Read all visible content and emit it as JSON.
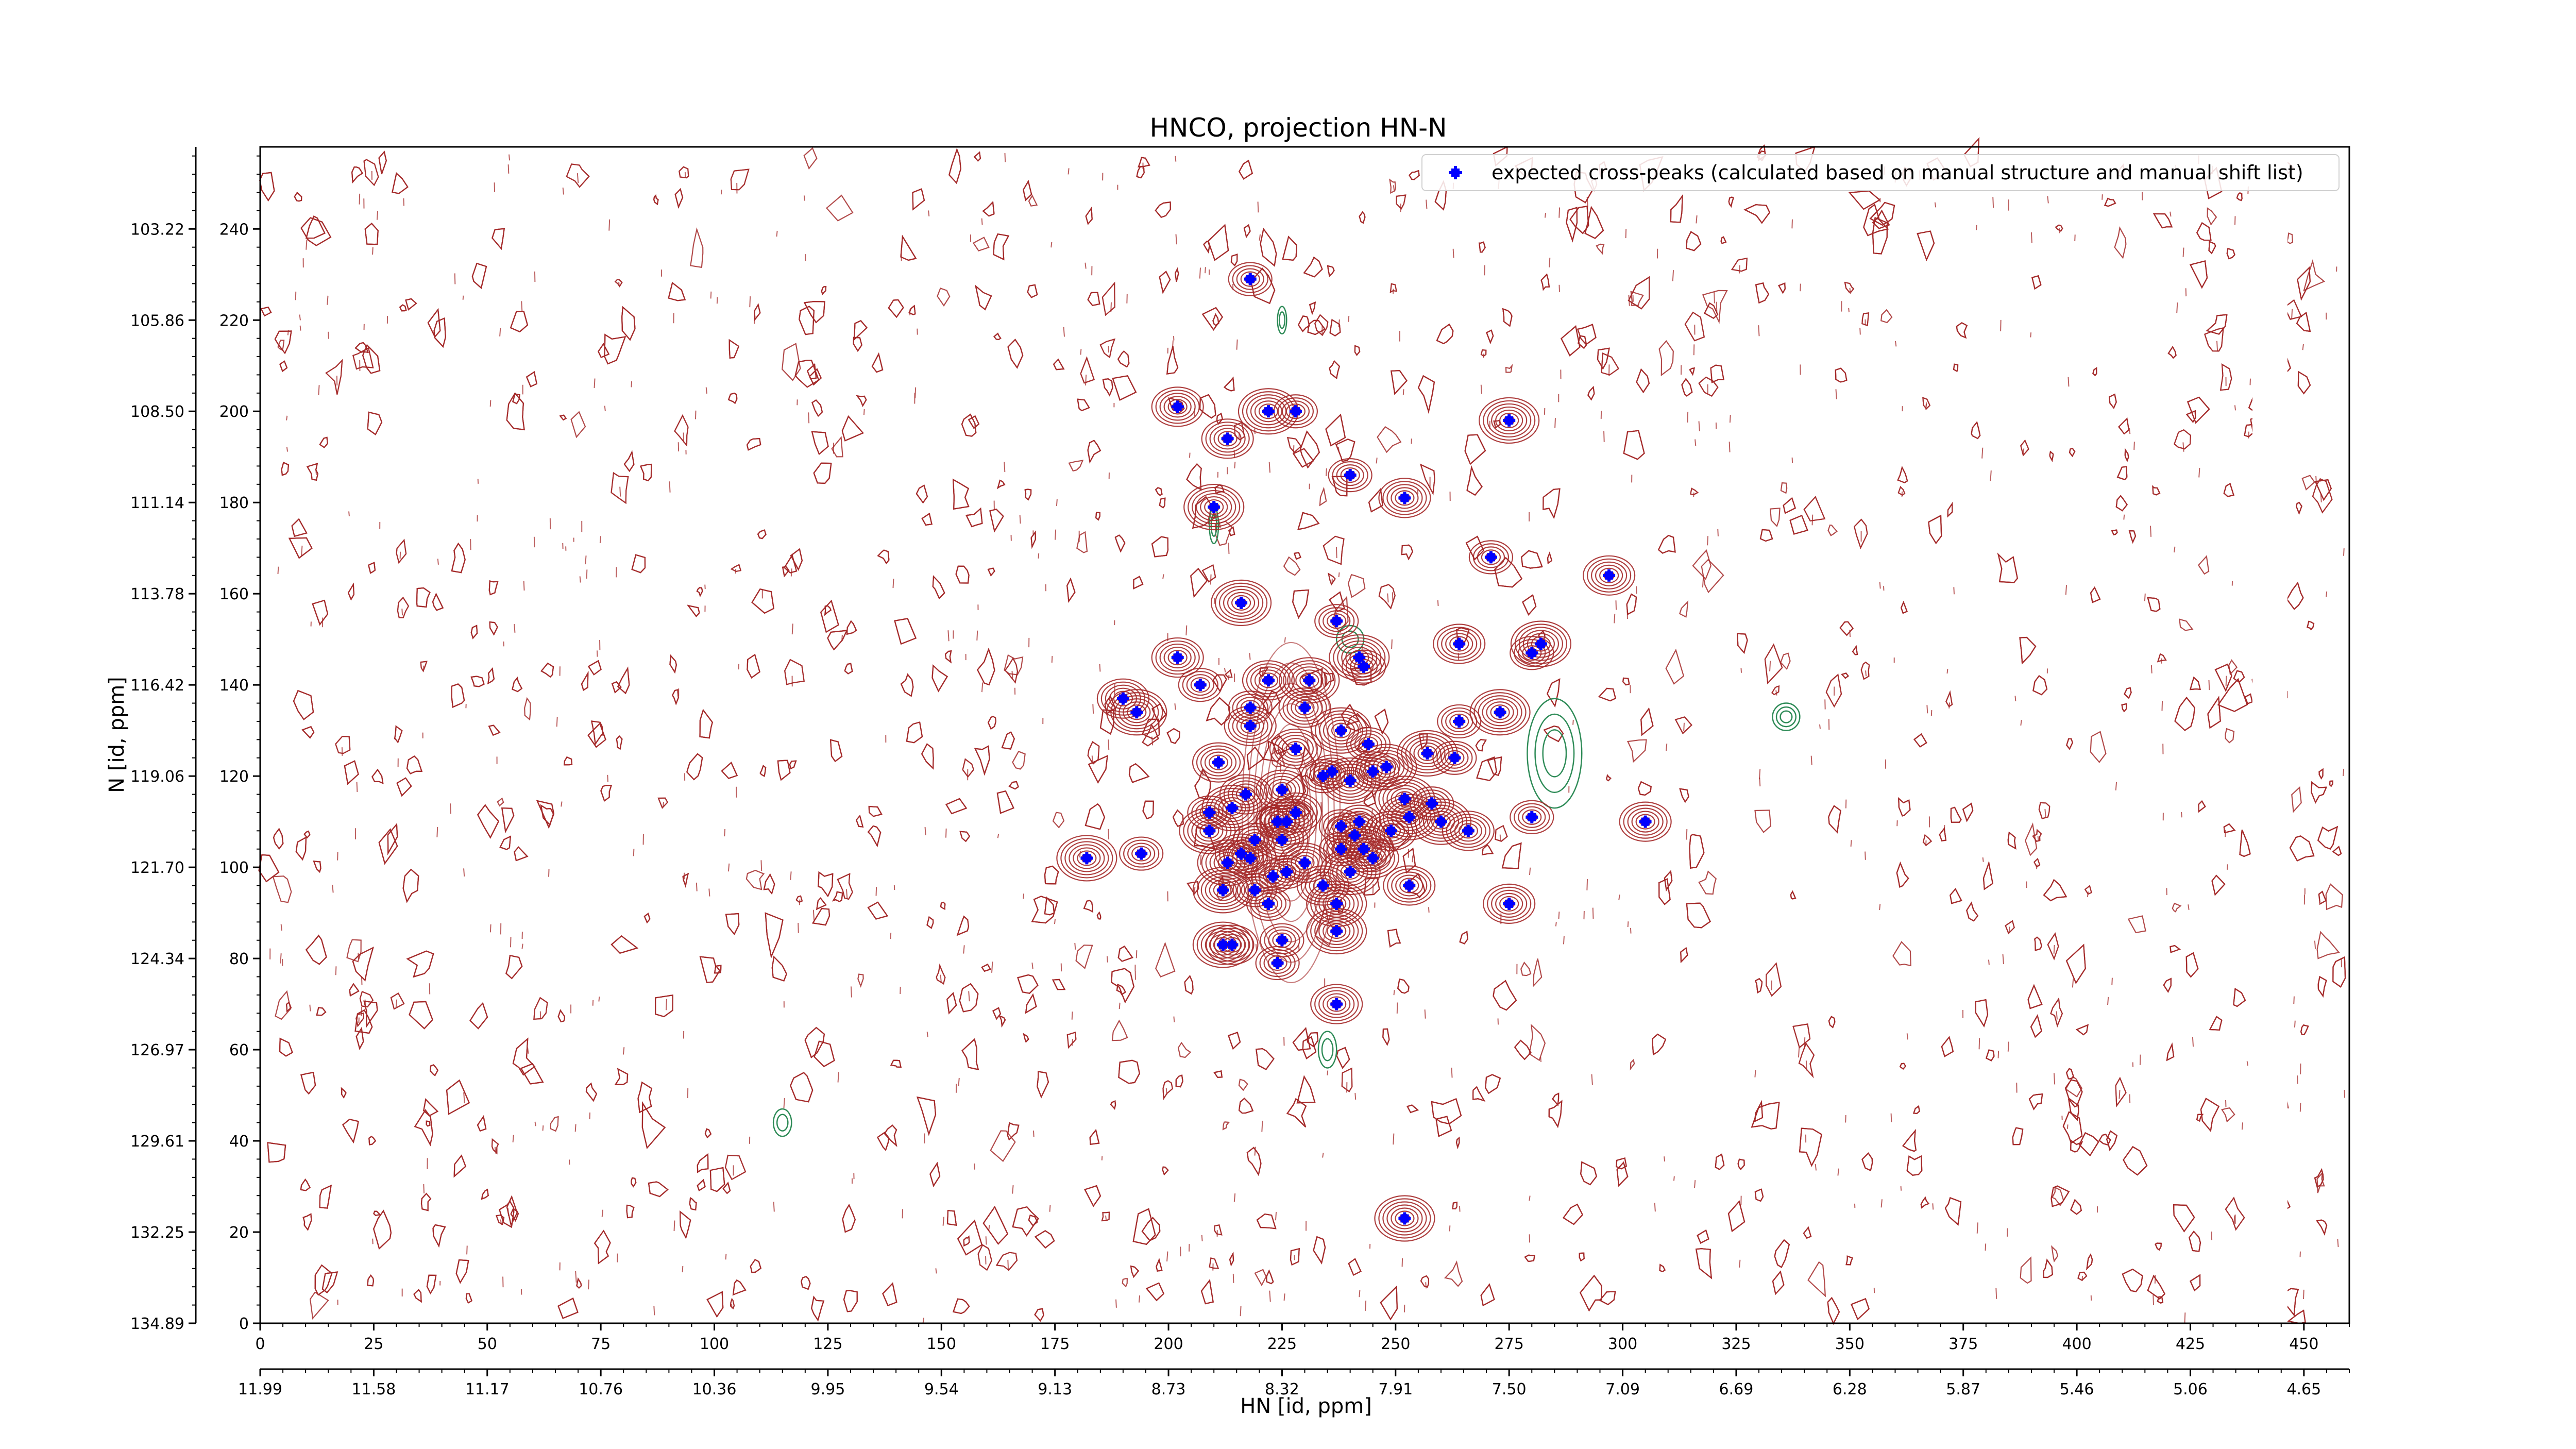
{
  "chart_data": {
    "type": "scatter",
    "title": "HNCO, projection HN-N",
    "xlabel": "HN [id, ppm]",
    "ylabel": "N [id, ppm]",
    "x_index_range": [
      0,
      460
    ],
    "y_index_range": [
      0,
      258
    ],
    "x_index_ticks": [
      "0",
      "25",
      "50",
      "75",
      "100",
      "125",
      "150",
      "175",
      "200",
      "225",
      "250",
      "275",
      "300",
      "325",
      "350",
      "375",
      "400",
      "425",
      "450"
    ],
    "x_ppm_ticks": [
      "11.99",
      "11.58",
      "11.17",
      "10.76",
      "10.36",
      "9.95",
      "9.54",
      "9.13",
      "8.73",
      "8.32",
      "7.91",
      "7.50",
      "7.09",
      "6.69",
      "6.28",
      "5.87",
      "5.46",
      "5.06",
      "4.65"
    ],
    "y_index_ticks": [
      "0",
      "20",
      "40",
      "60",
      "80",
      "100",
      "120",
      "140",
      "160",
      "180",
      "200",
      "220",
      "240"
    ],
    "y_ppm_ticks": [
      "134.89",
      "132.25",
      "129.61",
      "126.97",
      "124.34",
      "121.70",
      "119.06",
      "116.42",
      "113.78",
      "111.14",
      "108.50",
      "105.86",
      "103.22"
    ],
    "legend": {
      "placement": "top-right",
      "entry": "expected cross-peaks (calculated based on manual structure and manual shift list)"
    },
    "colors": {
      "positive_contours": "#a52a2a",
      "negative_contours": "#2e8b57",
      "expected_peaks": "#0000ff"
    },
    "series": [
      {
        "name": "expected cross-peaks (calculated based on manual structure and manual shift list)",
        "points": [
          [
            218,
            229
          ],
          [
            202,
            201
          ],
          [
            222,
            200
          ],
          [
            228,
            200
          ],
          [
            213,
            194
          ],
          [
            275,
            198
          ],
          [
            240,
            186
          ],
          [
            252,
            181
          ],
          [
            210,
            179
          ],
          [
            271,
            168
          ],
          [
            297,
            164
          ],
          [
            216,
            158
          ],
          [
            237,
            154
          ],
          [
            264,
            149
          ],
          [
            282,
            149
          ],
          [
            280,
            147
          ],
          [
            202,
            146
          ],
          [
            242,
            146
          ],
          [
            243,
            144
          ],
          [
            222,
            141
          ],
          [
            231,
            141
          ],
          [
            207,
            140
          ],
          [
            190,
            137
          ],
          [
            193,
            134
          ],
          [
            218,
            135
          ],
          [
            230,
            135
          ],
          [
            273,
            134
          ],
          [
            264,
            132
          ],
          [
            218,
            131
          ],
          [
            238,
            130
          ],
          [
            244,
            127
          ],
          [
            228,
            126
          ],
          [
            257,
            125
          ],
          [
            263,
            124
          ],
          [
            211,
            123
          ],
          [
            248,
            122
          ],
          [
            236,
            121
          ],
          [
            245,
            121
          ],
          [
            240,
            119
          ],
          [
            234,
            120
          ],
          [
            225,
            117
          ],
          [
            252,
            115
          ],
          [
            209,
            112
          ],
          [
            217,
            116
          ],
          [
            214,
            113
          ],
          [
            258,
            114
          ],
          [
            228,
            112
          ],
          [
            253,
            111
          ],
          [
            238,
            109
          ],
          [
            249,
            108
          ],
          [
            260,
            110
          ],
          [
            242,
            110
          ],
          [
            266,
            108
          ],
          [
            226,
            110
          ],
          [
            224,
            110
          ],
          [
            225,
            106
          ],
          [
            241,
            107
          ],
          [
            280,
            111
          ],
          [
            305,
            110
          ],
          [
            209,
            108
          ],
          [
            219,
            106
          ],
          [
            216,
            103
          ],
          [
            243,
            104
          ],
          [
            238,
            104
          ],
          [
            245,
            102
          ],
          [
            182,
            102
          ],
          [
            194,
            103
          ],
          [
            218,
            102
          ],
          [
            213,
            101
          ],
          [
            226,
            99
          ],
          [
            230,
            101
          ],
          [
            240,
            99
          ],
          [
            223,
            98
          ],
          [
            234,
            96
          ],
          [
            212,
            95
          ],
          [
            219,
            95
          ],
          [
            253,
            96
          ],
          [
            237,
            92
          ],
          [
            222,
            92
          ],
          [
            275,
            92
          ],
          [
            237,
            86
          ],
          [
            225,
            84
          ],
          [
            214,
            83
          ],
          [
            212,
            83
          ],
          [
            224,
            79
          ],
          [
            237,
            70
          ],
          [
            252,
            23
          ]
        ]
      }
    ]
  }
}
